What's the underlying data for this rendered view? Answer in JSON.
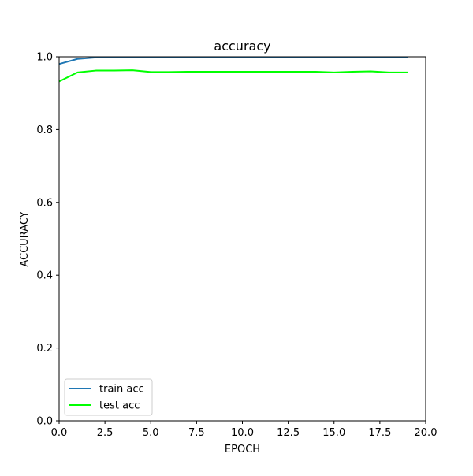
{
  "chart_data": {
    "type": "line",
    "title": "accuracy",
    "xlabel": "EPOCH",
    "ylabel": "ACCURACY",
    "xlim": [
      0,
      20
    ],
    "ylim": [
      0,
      1.0
    ],
    "x_ticks": [
      0,
      2.5,
      5,
      7.5,
      10,
      12.5,
      15,
      17.5,
      20
    ],
    "x_tick_labels": [
      "0.0",
      "2.5",
      "5.0",
      "7.5",
      "10.0",
      "12.5",
      "15.0",
      "17.5",
      "20.0"
    ],
    "y_ticks": [
      0,
      0.2,
      0.4,
      0.6,
      0.8,
      1.0
    ],
    "y_tick_labels": [
      "0.0",
      "0.2",
      "0.4",
      "0.6",
      "0.8",
      "1.0"
    ],
    "grid": false,
    "legend_position": "lower-left",
    "series": [
      {
        "name": "train acc",
        "color": "#1f77b4",
        "x": [
          0,
          1,
          2,
          3,
          4,
          5,
          6,
          7,
          8,
          9,
          10,
          11,
          12,
          13,
          14,
          15,
          16,
          17,
          18,
          19
        ],
        "values": [
          0.98,
          0.994,
          0.998,
          1.0,
          1.0,
          1.0,
          1.0,
          1.0,
          1.0,
          1.0,
          1.0,
          1.0,
          1.0,
          1.0,
          1.0,
          1.0,
          1.0,
          1.0,
          1.0,
          1.0
        ]
      },
      {
        "name": "test acc",
        "color": "#00ff00",
        "x": [
          0,
          1,
          2,
          3,
          4,
          5,
          6,
          7,
          8,
          9,
          10,
          11,
          12,
          13,
          14,
          15,
          16,
          17,
          18,
          19
        ],
        "values": [
          0.932,
          0.957,
          0.962,
          0.962,
          0.963,
          0.958,
          0.958,
          0.959,
          0.959,
          0.959,
          0.959,
          0.959,
          0.959,
          0.959,
          0.959,
          0.957,
          0.959,
          0.96,
          0.957,
          0.957
        ]
      }
    ]
  }
}
